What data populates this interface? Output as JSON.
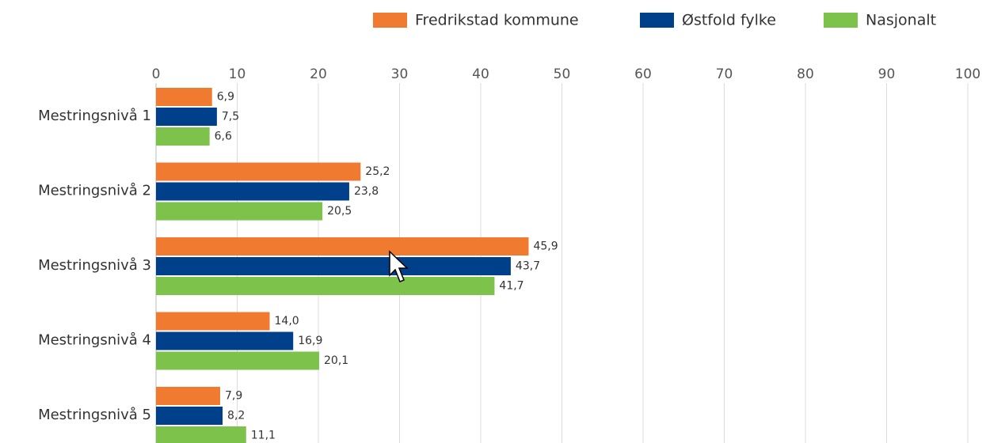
{
  "chart_data": {
    "type": "hbar",
    "categories": [
      "Mestringsnivå 1",
      "Mestringsnivå 2",
      "Mestringsnivå 3",
      "Mestringsnivå 4",
      "Mestringsnivå 5"
    ],
    "series": [
      {
        "name": "Fredrikstad kommune",
        "color": "#f07a2f",
        "values": [
          6.9,
          25.2,
          45.9,
          14.0,
          7.9
        ],
        "value_labels": [
          "6,9",
          "25,2",
          "45,9",
          "14,0",
          "7,9"
        ]
      },
      {
        "name": "Østfold fylke",
        "color": "#003f8a",
        "values": [
          7.5,
          23.8,
          43.7,
          16.9,
          8.2
        ],
        "value_labels": [
          "7,5",
          "23,8",
          "43,7",
          "16,9",
          "8,2"
        ]
      },
      {
        "name": "Nasjonalt",
        "color": "#7dc24b",
        "values": [
          6.6,
          20.5,
          41.7,
          20.1,
          11.1
        ],
        "value_labels": [
          "6,6",
          "20,5",
          "41,7",
          "20,1",
          "11,1"
        ]
      }
    ],
    "xlim": [
      0,
      100
    ],
    "xticks": [
      0,
      10,
      20,
      30,
      40,
      50,
      60,
      70,
      80,
      90,
      100
    ],
    "grid": true,
    "legend": "top-right"
  }
}
